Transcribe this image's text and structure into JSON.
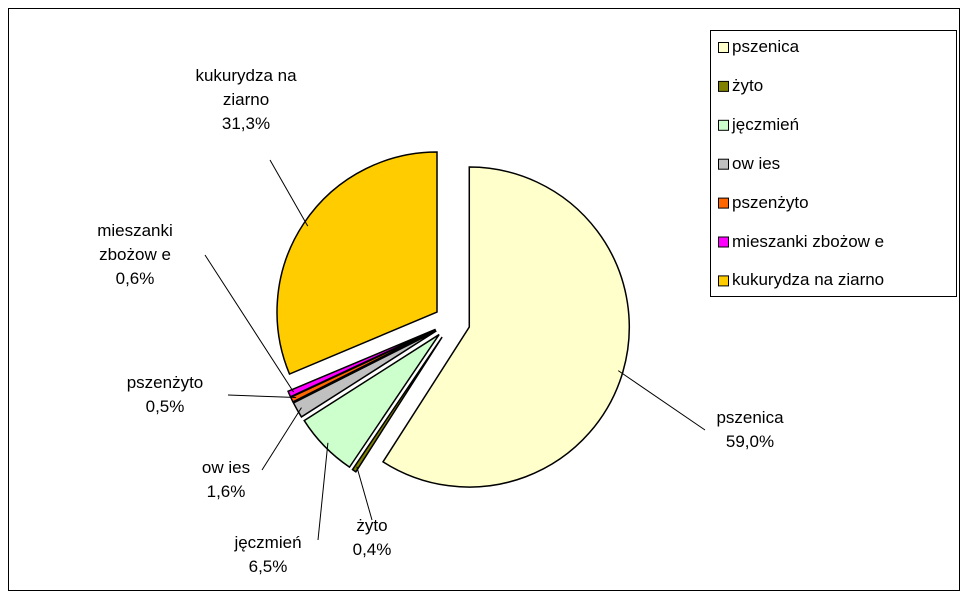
{
  "chart_data": {
    "type": "pie",
    "categories": [
      "pszenica",
      "żyto",
      "jęczmień",
      "ow ies",
      "pszenżyto",
      "mieszanki zbożow e",
      "kukurydza na ziarno"
    ],
    "values": [
      59.0,
      0.4,
      6.5,
      1.6,
      0.5,
      0.6,
      31.3
    ],
    "value_labels": [
      "59,0%",
      "0,4%",
      "6,5%",
      "1,6%",
      "0,5%",
      "0,6%",
      "31,3%"
    ],
    "colors": [
      "#FFFFCC",
      "#808000",
      "#CCFFCC",
      "#C0C0C0",
      "#FF6600",
      "#FF00FF",
      "#FFCC00"
    ],
    "exploded": true,
    "legend": "top-right"
  }
}
